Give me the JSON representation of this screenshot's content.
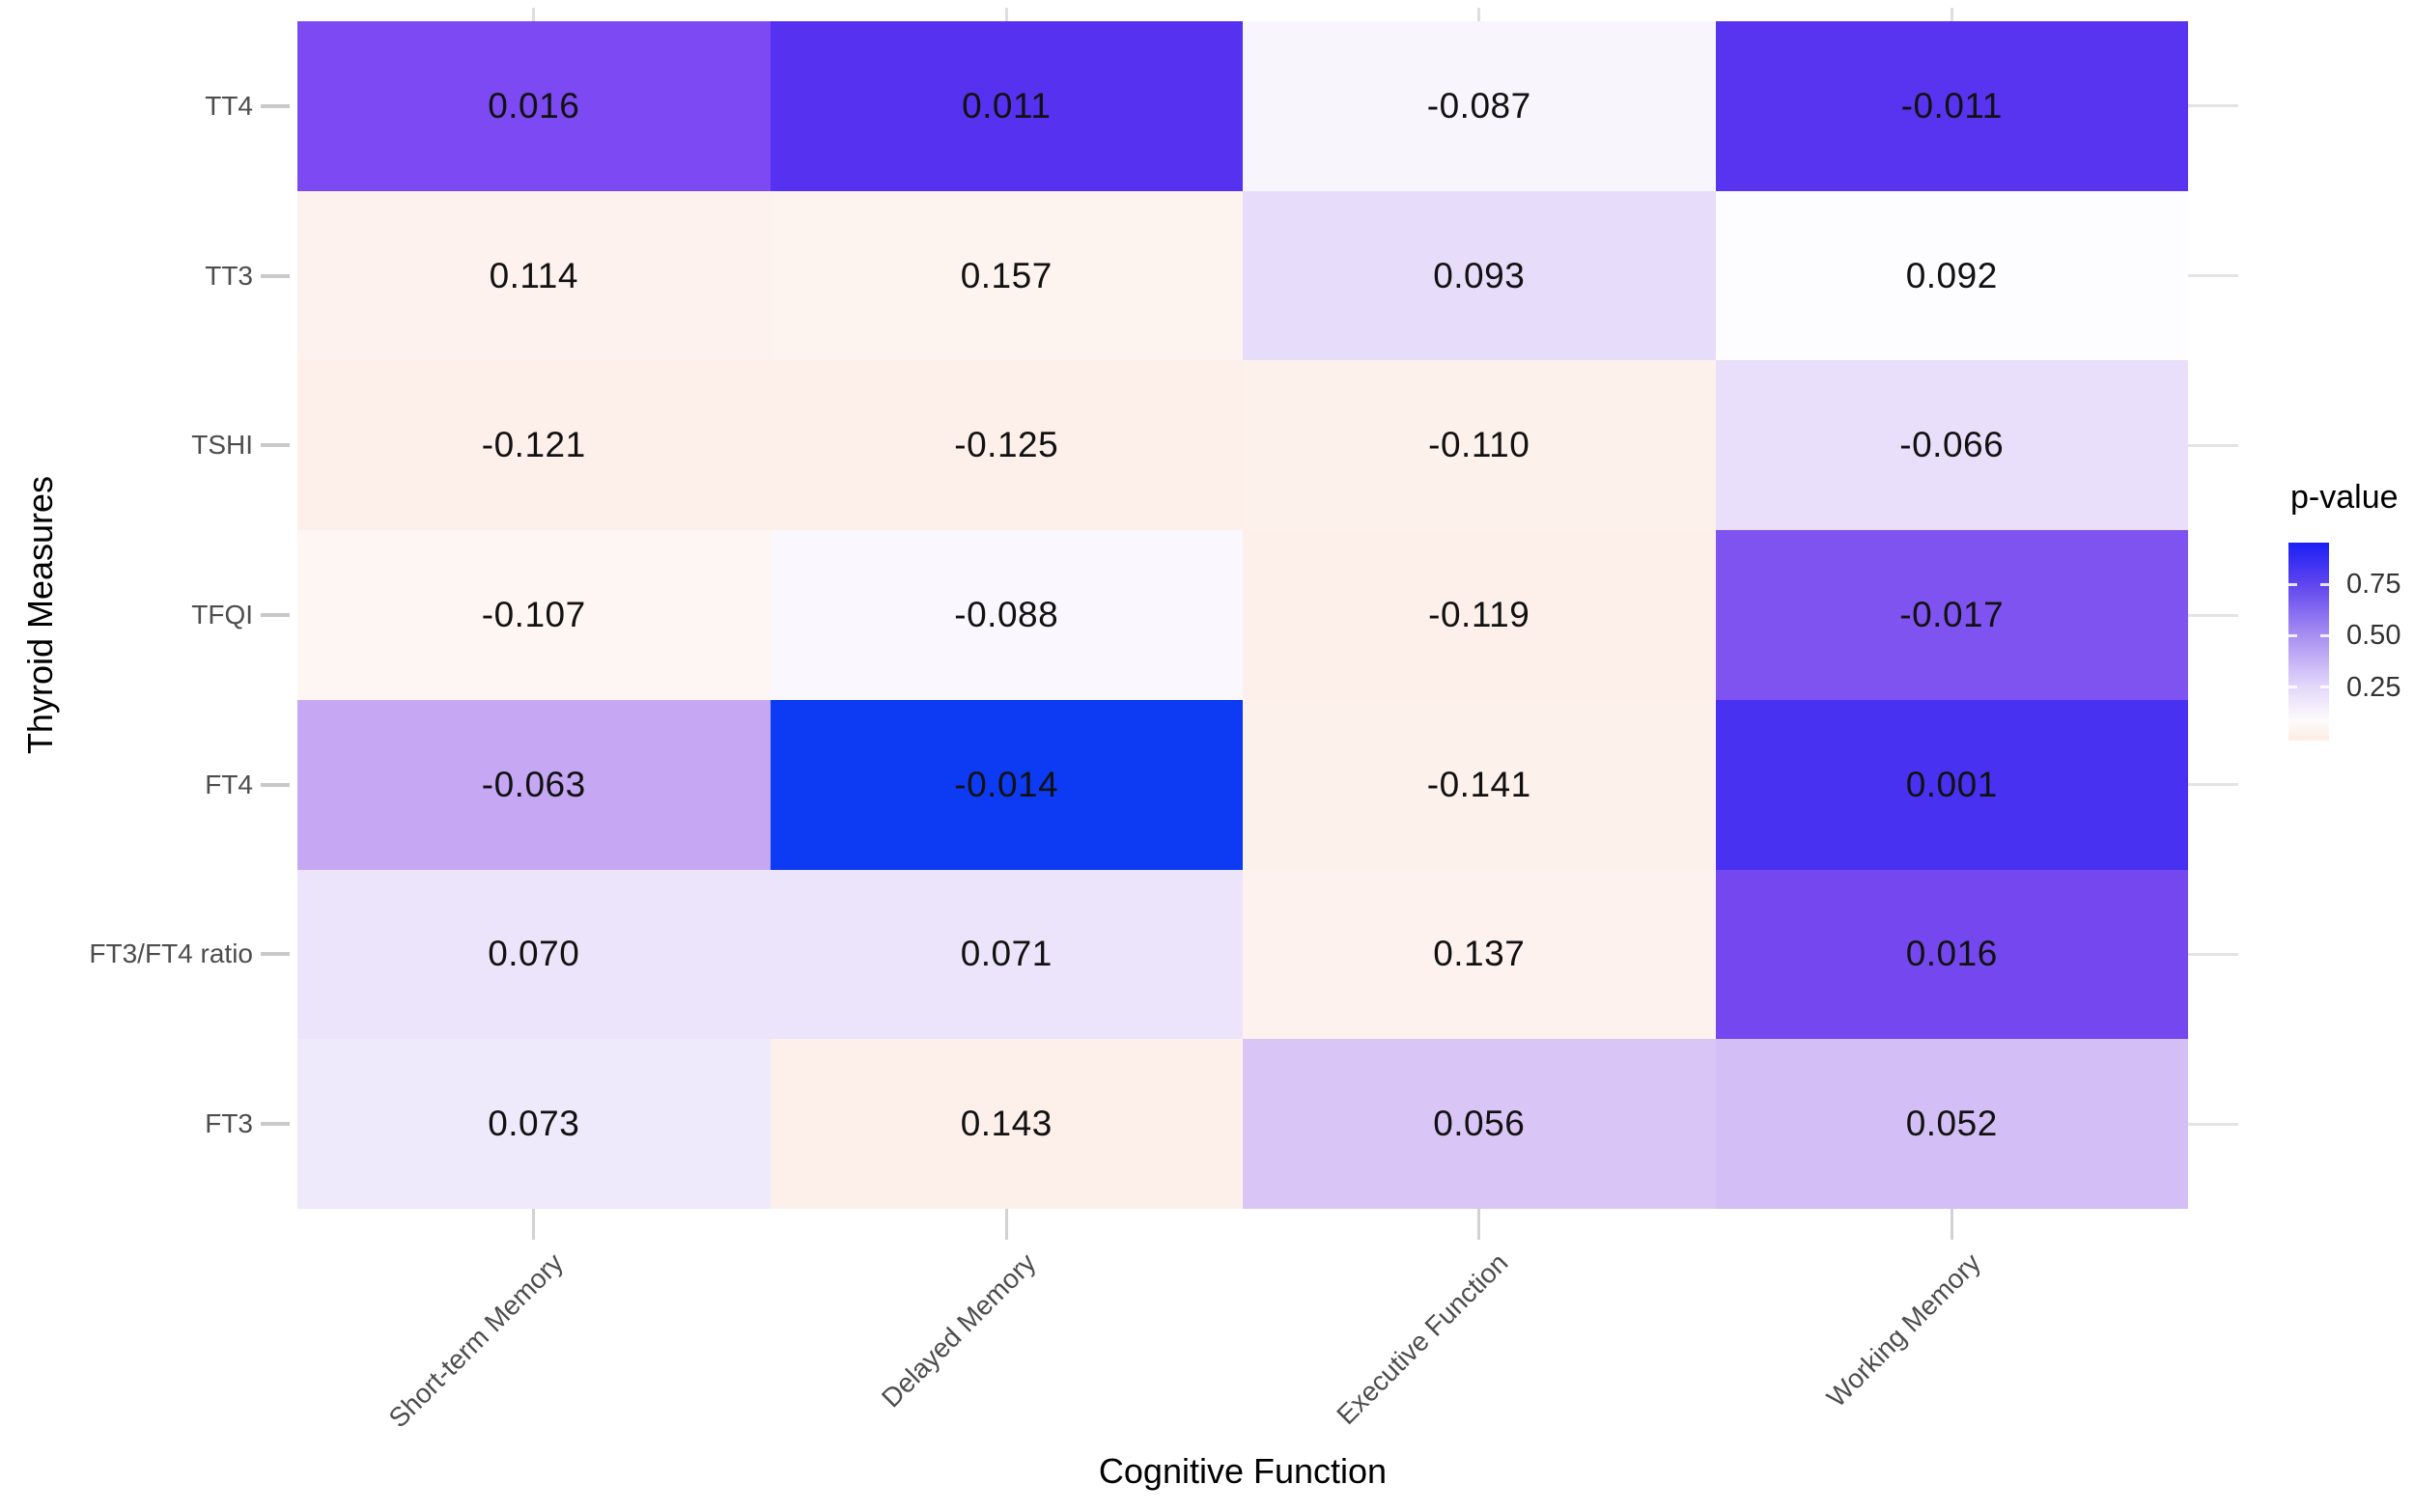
{
  "chart_data": {
    "type": "heatmap",
    "title": "",
    "xlabel": "Cognitive Function",
    "ylabel": "Thyroid Measures",
    "x_categories": [
      "Short-term Memory",
      "Delayed Memory",
      "Executive Function",
      "Working Memory"
    ],
    "y_categories": [
      "TT4",
      "TT3",
      "TSHI",
      "TFQI",
      "FT4",
      "FT3/FT4 ratio",
      "FT3"
    ],
    "cells": {
      "note": "rows ordered top-to-bottom matching y_categories; columns left-to-right matching x_categories; labels are correlation coefficients printed in each tile; colors encode p-value",
      "labels": [
        [
          "0.016",
          "0.011",
          "-0.087",
          "-0.011"
        ],
        [
          "0.114",
          "0.157",
          "0.093",
          "0.092"
        ],
        [
          "-0.121",
          "-0.125",
          "-0.110",
          "-0.066"
        ],
        [
          "-0.107",
          "-0.088",
          "-0.119",
          "-0.017"
        ],
        [
          "-0.063",
          "-0.014",
          "-0.141",
          "0.001"
        ],
        [
          "0.070",
          "0.071",
          "0.137",
          "0.016"
        ],
        [
          "0.073",
          "0.143",
          "0.056",
          "0.052"
        ]
      ],
      "values": [
        [
          0.016,
          0.011,
          -0.087,
          -0.011
        ],
        [
          0.114,
          0.157,
          0.093,
          0.092
        ],
        [
          -0.121,
          -0.125,
          -0.11,
          -0.066
        ],
        [
          -0.107,
          -0.088,
          -0.119,
          -0.017
        ],
        [
          -0.063,
          -0.014,
          -0.141,
          0.001
        ],
        [
          0.07,
          0.071,
          0.137,
          0.016
        ],
        [
          0.073,
          0.143,
          0.056,
          0.052
        ]
      ],
      "colors": [
        [
          "#7c49f2",
          "#5631f0",
          "#f9f5fd",
          "#5834f1"
        ],
        [
          "#fdf2ee",
          "#fdf3ef",
          "#e7dcf9",
          "#fdfcff"
        ],
        [
          "#fdefe9",
          "#fdefe9",
          "#fdf1ec",
          "#eadffb"
        ],
        [
          "#fef6f2",
          "#faf7fe",
          "#fdf0eb",
          "#7e53f0"
        ],
        [
          "#c5a7f3",
          "#0c3bf3",
          "#fdf1ec",
          "#4831f0"
        ],
        [
          "#ece4fb",
          "#ece4fb",
          "#fdf2ee",
          "#7448ee"
        ],
        [
          "#efe9fc",
          "#fdf0eb",
          "#d9c6f6",
          "#d3bef5"
        ]
      ]
    },
    "legend": {
      "title": "p-value",
      "position": "right",
      "ticks": [
        {
          "label": "0.75",
          "pos": 0.21
        },
        {
          "label": "0.50",
          "pos": 0.47
        },
        {
          "label": "0.25",
          "pos": 0.73
        }
      ],
      "gradient": [
        {
          "color": "#1b1ff5",
          "stop": 0
        },
        {
          "color": "#5f45ee",
          "stop": 21
        },
        {
          "color": "#a88ff1",
          "stop": 47
        },
        {
          "color": "#e3d8fa",
          "stop": 73
        },
        {
          "color": "#fdfbfc",
          "stop": 90
        },
        {
          "color": "#fdece2",
          "stop": 100
        }
      ]
    },
    "layout_hints": {
      "grid": "light gray tick dashes at category centers outside tile area",
      "x_tick_label_angle": -45,
      "high_color": "#1b1ff5",
      "low_color": "#fdece2",
      "axis_text_color": "#4d4d4d",
      "cell_text_color": "#111111"
    }
  }
}
